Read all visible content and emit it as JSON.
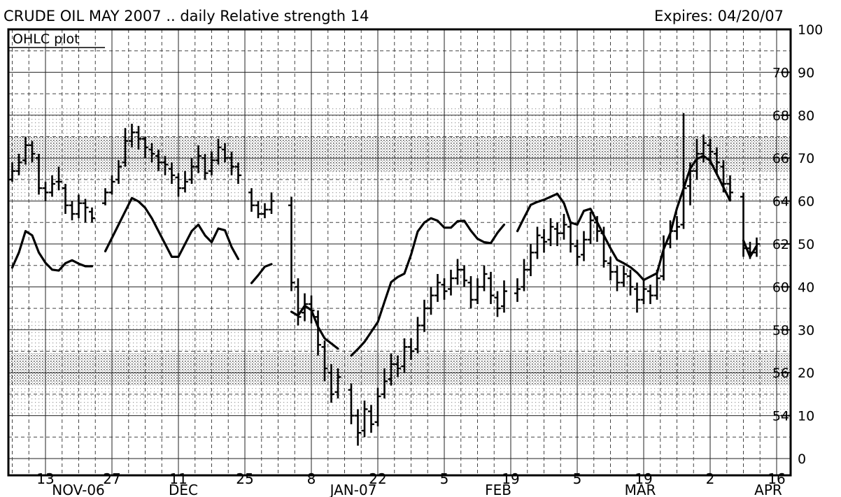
{
  "chart_data": {
    "type": "ohlc",
    "title": "CRUDE OIL MAY 2007 .. daily Relative strength  14",
    "expires": "Expires: 04/20/07",
    "plot_label": "OHLC plot",
    "color": "#000000",
    "categories": [
      null,
      null,
      null,
      null,
      null,
      "13",
      null,
      null,
      null,
      null,
      null,
      null,
      null,
      null,
      null,
      "27",
      null,
      null,
      null,
      null,
      null,
      null,
      null,
      null,
      null,
      "11",
      null,
      null,
      null,
      null,
      null,
      null,
      null,
      null,
      null,
      "25",
      null,
      null,
      null,
      null,
      null,
      null,
      null,
      null,
      null,
      "8",
      null,
      null,
      null,
      null,
      null,
      null,
      null,
      null,
      null,
      "22",
      null,
      null,
      null,
      null,
      null,
      null,
      null,
      null,
      null,
      "5",
      null,
      null,
      null,
      null,
      null,
      null,
      null,
      null,
      null,
      "19",
      null,
      null,
      null,
      null,
      null,
      null,
      null,
      null,
      null,
      "5",
      null,
      null,
      null,
      null,
      null,
      null,
      null,
      null,
      null,
      "19",
      null,
      null,
      null,
      null,
      null,
      null,
      null,
      null,
      null,
      "2",
      null,
      null,
      null,
      null,
      null,
      null,
      null,
      null,
      null,
      "16"
    ],
    "months": [
      "NOV-06",
      "DEC",
      "JAN-07",
      "FEB",
      "MAR",
      "APR"
    ],
    "open": [
      65.0,
      65.4,
      65.9,
      66.6,
      66.0,
      64.6,
      64.4,
      64.9,
      64.6,
      63.8,
      63.4,
      63.9,
      63.5,
      null,
      63.9,
      64.4,
      65.0,
      65.8,
      66.8,
      67.2,
      66.9,
      66.4,
      66.1,
      65.8,
      65.5,
      65.1,
      64.6,
      65.0,
      65.6,
      66.0,
      65.4,
      65.9,
      66.4,
      66.0,
      65.6,
      null,
      64.4,
      63.8,
      63.4,
      63.6,
      null,
      null,
      63.8,
      60.0,
      58.8,
      59.2,
      58.6,
      57.2,
      56.0,
      55.1,
      null,
      55.2,
      54.0,
      53.3,
      54.2,
      53.7,
      55.0,
      55.7,
      56.4,
      56.3,
      57.2,
      57.1,
      58.2,
      59.0,
      59.6,
      60.1,
      59.9,
      60.4,
      60.8,
      60.2,
      59.4,
      60.0,
      60.4,
      59.5,
      59.1,
      null,
      59.7,
      60.0,
      60.8,
      61.6,
      62.3,
      62.2,
      62.7,
      62.5,
      62.8,
      61.9,
      61.5,
      62.2,
      63.0,
      62.5,
      61.1,
      60.7,
      60.2,
      60.5,
      59.9,
      59.4,
      59.8,
      59.6,
      60.5,
      62.0,
      62.6,
      62.9,
      64.7,
      65.4,
      66.2,
      66.6,
      66.2,
      65.6,
      64.8,
      null,
      64.2,
      61.8,
      61.6,
      null,
      null,
      null
    ],
    "high": [
      65.8,
      66.2,
      67.0,
      66.8,
      66.2,
      64.9,
      65.2,
      65.6,
      64.8,
      64.0,
      64.3,
      64.1,
      63.7,
      null,
      64.6,
      65.2,
      65.9,
      67.4,
      67.6,
      67.5,
      67.0,
      66.7,
      66.4,
      66.1,
      65.8,
      65.3,
      65.4,
      66.0,
      66.6,
      66.2,
      66.3,
      66.9,
      66.7,
      66.3,
      65.8,
      null,
      64.6,
      64.0,
      63.9,
      64.4,
      null,
      null,
      64.2,
      60.4,
      59.7,
      59.6,
      58.9,
      57.5,
      56.4,
      56.2,
      null,
      55.5,
      54.3,
      54.7,
      54.5,
      55.3,
      56.2,
      56.9,
      56.8,
      57.6,
      57.6,
      58.6,
      59.4,
      60.0,
      60.6,
      60.4,
      60.8,
      61.3,
      61.0,
      60.5,
      60.4,
      61.0,
      60.7,
      59.8,
      60.3,
      null,
      60.4,
      61.3,
      62.0,
      62.8,
      62.7,
      63.2,
      63.0,
      63.4,
      63.0,
      62.2,
      62.6,
      63.5,
      63.3,
      62.8,
      61.4,
      61.0,
      61.0,
      60.8,
      60.2,
      60.3,
      60.1,
      60.8,
      62.4,
      63.1,
      63.3,
      68.1,
      65.8,
      66.9,
      67.1,
      66.9,
      66.5,
      65.9,
      65.2,
      null,
      64.4,
      62.1,
      62.3,
      null,
      null,
      null
    ],
    "low": [
      64.9,
      65.2,
      65.7,
      65.8,
      64.3,
      64.0,
      64.2,
      64.5,
      63.4,
      63.1,
      63.2,
      63.0,
      63.0,
      null,
      63.8,
      64.3,
      64.8,
      65.6,
      66.5,
      66.4,
      66.0,
      65.8,
      65.4,
      65.2,
      64.8,
      64.2,
      64.4,
      64.8,
      65.3,
      65.0,
      65.2,
      65.7,
      65.8,
      65.2,
      64.8,
      null,
      63.5,
      63.2,
      63.2,
      63.4,
      null,
      null,
      59.8,
      58.2,
      58.4,
      58.3,
      56.8,
      55.6,
      54.6,
      54.8,
      null,
      53.6,
      52.6,
      53.0,
      53.2,
      53.5,
      54.8,
      55.4,
      55.8,
      56.0,
      56.6,
      56.9,
      57.9,
      58.7,
      59.3,
      59.4,
      59.6,
      60.1,
      60.0,
      59.0,
      59.2,
      59.8,
      59.2,
      58.6,
      58.8,
      null,
      59.3,
      59.8,
      60.5,
      61.3,
      61.6,
      61.9,
      61.9,
      62.2,
      61.6,
      61.0,
      61.2,
      62.0,
      62.1,
      60.9,
      60.3,
      59.8,
      60.0,
      59.6,
      58.8,
      59.2,
      59.2,
      59.4,
      60.3,
      61.8,
      62.2,
      62.7,
      63.8,
      65.0,
      65.8,
      65.7,
      65.2,
      64.4,
      64.0,
      null,
      61.4,
      61.3,
      61.4,
      null,
      null,
      null
    ],
    "close": [
      65.4,
      65.8,
      66.6,
      66.2,
      64.6,
      64.4,
      64.8,
      64.9,
      63.8,
      63.4,
      63.9,
      63.7,
      63.2,
      null,
      64.4,
      64.9,
      65.6,
      66.8,
      67.2,
      66.9,
      66.5,
      66.2,
      65.8,
      65.7,
      65.2,
      64.6,
      64.9,
      65.6,
      66.1,
      65.3,
      65.9,
      66.5,
      66.0,
      65.6,
      65.2,
      null,
      63.8,
      63.4,
      63.6,
      64.0,
      null,
      null,
      60.2,
      58.6,
      59.2,
      58.9,
      57.3,
      56.2,
      55.0,
      55.8,
      null,
      54.0,
      53.2,
      54.3,
      53.6,
      54.9,
      55.6,
      56.4,
      56.2,
      57.2,
      57.0,
      58.2,
      59.0,
      59.6,
      60.2,
      59.8,
      60.4,
      60.8,
      60.3,
      59.4,
      60.0,
      60.6,
      59.6,
      59.0,
      59.8,
      null,
      59.9,
      60.8,
      61.6,
      62.4,
      62.1,
      62.8,
      62.5,
      62.9,
      62.0,
      61.4,
      62.2,
      63.1,
      62.6,
      61.2,
      60.7,
      60.2,
      60.6,
      60.0,
      59.4,
      59.9,
      59.6,
      60.4,
      62.0,
      62.6,
      62.8,
      64.6,
      65.4,
      66.2,
      66.7,
      66.3,
      65.8,
      64.8,
      64.4,
      null,
      61.8,
      61.6,
      62.0,
      null,
      null,
      null
    ],
    "rsi": [
      44.5,
      48,
      53,
      52,
      48,
      45.6,
      44,
      43.8,
      45.5,
      46.2,
      45.4,
      44.8,
      44.8,
      null,
      48.3,
      51.4,
      54.5,
      57.6,
      60.7,
      59.9,
      58.4,
      56,
      53,
      50,
      47,
      47,
      50,
      53,
      54.5,
      52,
      50.4,
      53.6,
      53.2,
      49.3,
      46.5,
      null,
      40.9,
      42.7,
      44.7,
      45.3,
      null,
      null,
      34.2,
      33.3,
      35.6,
      34.6,
      30.7,
      28,
      26.8,
      25.6,
      null,
      24,
      25.5,
      27.2,
      29.5,
      31.8,
      36.5,
      41.1,
      42.3,
      43.1,
      47.5,
      52.9,
      55,
      56,
      55.4,
      53.8,
      53.8,
      55.3,
      55.4,
      53.1,
      51.2,
      50.4,
      50.2,
      52.6,
      54.5,
      null,
      53,
      56.1,
      59.1,
      59.8,
      60.3,
      61,
      61.7,
      59.5,
      55,
      54.5,
      57.7,
      58.2,
      55.1,
      52,
      49,
      46.3,
      45.5,
      44.6,
      43.3,
      41.6,
      42.4,
      43.2,
      48.8,
      52.5,
      58.3,
      62.9,
      67.6,
      69.8,
      70.5,
      69.4,
      66.3,
      63.2,
      60.1,
      null,
      50.8,
      47,
      49.6,
      null,
      null,
      null
    ],
    "ylim": [
      52,
      72
    ],
    "yticks": [
      54,
      56,
      58,
      60,
      62,
      64,
      66,
      68,
      70
    ],
    "y2lim": [
      0,
      100
    ],
    "y2ticks": [
      0,
      10,
      20,
      30,
      40,
      50,
      60,
      70,
      80,
      90,
      100
    ],
    "grid": true
  }
}
